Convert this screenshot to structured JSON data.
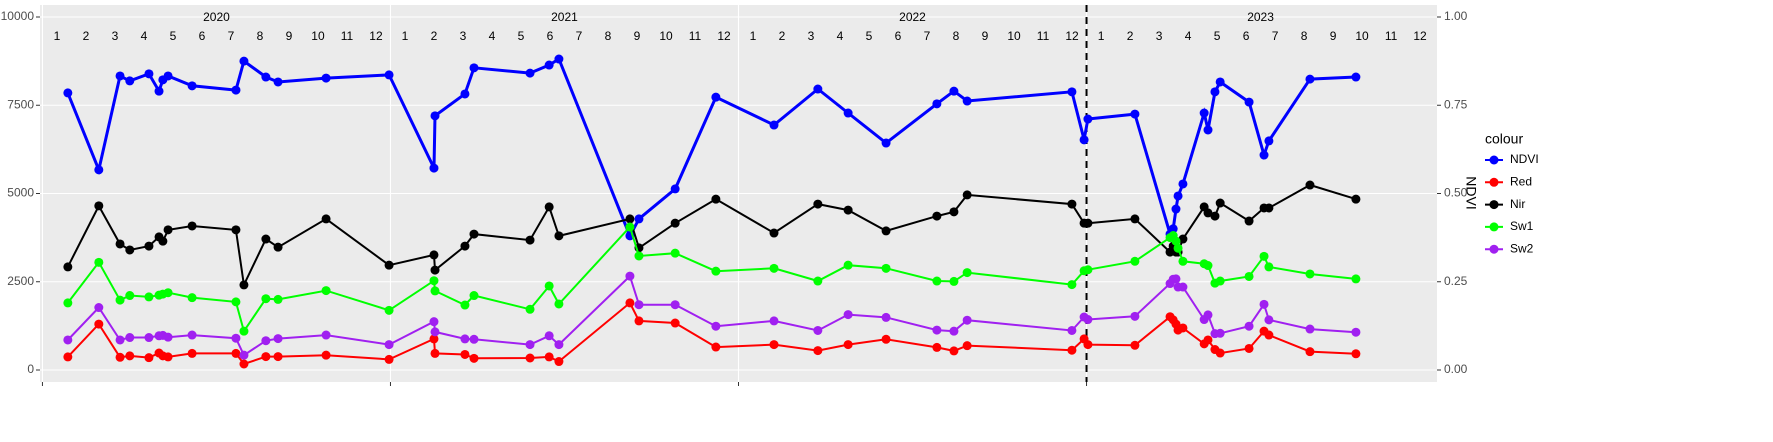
{
  "chart_data": {
    "type": "line",
    "x": [
      2020.073,
      2020.162,
      2020.223,
      2020.251,
      2020.306,
      2020.335,
      2020.346,
      2020.361,
      2020.43,
      2020.556,
      2020.579,
      2020.642,
      2020.677,
      2020.815,
      2020.996,
      2021.125,
      2021.128,
      2021.214,
      2021.24,
      2021.401,
      2021.456,
      2021.484,
      2021.688,
      2021.714,
      2021.818,
      2021.935,
      2022.102,
      2022.228,
      2022.315,
      2022.424,
      2022.57,
      2022.619,
      2022.657,
      2022.958,
      2022.993,
      2023.004,
      2023.139,
      2023.24,
      2023.249,
      2023.257,
      2023.263,
      2023.277,
      2023.338,
      2023.349,
      2023.369,
      2023.384,
      2023.467,
      2023.51,
      2023.524,
      2023.642,
      2023.774
    ],
    "series": [
      {
        "name": "NDVI",
        "color": "#0000ff",
        "axis": "y2",
        "values": [
          0.785,
          0.567,
          0.833,
          0.819,
          0.839,
          0.79,
          0.822,
          0.833,
          0.805,
          0.793,
          0.875,
          0.83,
          0.816,
          0.827,
          0.836,
          0.572,
          0.72,
          0.782,
          0.856,
          0.841,
          0.864,
          0.881,
          0.38,
          0.428,
          0.513,
          0.773,
          0.694,
          0.796,
          0.728,
          0.643,
          0.754,
          0.79,
          0.762,
          0.788,
          0.652,
          0.711,
          0.725,
          0.385,
          0.4,
          0.456,
          0.493,
          0.527,
          0.728,
          0.68,
          0.788,
          0.816,
          0.759,
          0.609,
          0.649,
          0.824,
          0.83
        ]
      },
      {
        "name": "Red",
        "color": "#ff0000",
        "values": [
          370,
          1300,
          360,
          400,
          350,
          480,
          400,
          370,
          470,
          470,
          170,
          380,
          380,
          420,
          300,
          880,
          470,
          440,
          330,
          340,
          370,
          240,
          1900,
          1390,
          1330,
          650,
          720,
          550,
          720,
          870,
          640,
          540,
          690,
          560,
          880,
          720,
          700,
          1510,
          1420,
          1300,
          1130,
          1190,
          740,
          850,
          580,
          480,
          610,
          1100,
          990,
          520,
          460
        ]
      },
      {
        "name": "Nir",
        "color": "#000000",
        "values": [
          2920,
          4650,
          3570,
          3400,
          3510,
          3770,
          3650,
          3970,
          4080,
          3970,
          2410,
          3710,
          3480,
          4280,
          2970,
          3260,
          2830,
          3510,
          3850,
          3680,
          4620,
          3800,
          4280,
          3460,
          4160,
          4840,
          3880,
          4700,
          4530,
          3940,
          4360,
          4480,
          4960,
          4700,
          4160,
          4160,
          4280,
          3340,
          3510,
          3340,
          3340,
          3710,
          4620,
          4450,
          4360,
          4730,
          4220,
          4590,
          4590,
          5240,
          4840
        ]
      },
      {
        "name": "Sw1",
        "color": "#00ff00",
        "values": [
          1900,
          3050,
          1980,
          2110,
          2070,
          2120,
          2150,
          2190,
          2050,
          1930,
          1100,
          2020,
          2000,
          2250,
          1690,
          2530,
          2240,
          1840,
          2110,
          1720,
          2380,
          1870,
          4050,
          3230,
          3310,
          2800,
          2880,
          2520,
          2970,
          2880,
          2520,
          2510,
          2760,
          2420,
          2810,
          2840,
          3080,
          3750,
          3810,
          3650,
          3450,
          3080,
          3010,
          2960,
          2460,
          2520,
          2650,
          3220,
          2920,
          2720,
          2580
        ]
      },
      {
        "name": "Sw2",
        "color": "#a020f0",
        "values": [
          850,
          1770,
          850,
          920,
          920,
          970,
          980,
          930,
          990,
          900,
          420,
          830,
          890,
          990,
          720,
          1370,
          1080,
          880,
          870,
          720,
          970,
          720,
          2660,
          1850,
          1850,
          1240,
          1390,
          1120,
          1570,
          1490,
          1130,
          1100,
          1410,
          1120,
          1500,
          1430,
          1520,
          2450,
          2570,
          2580,
          2350,
          2350,
          1430,
          1560,
          1030,
          1040,
          1240,
          1860,
          1420,
          1160,
          1070
        ]
      }
    ],
    "xlim": [
      2019.993,
      2024.007
    ],
    "years": [
      {
        "value": 2020,
        "label": "2020"
      },
      {
        "value": 2021,
        "label": "2021"
      },
      {
        "value": 2022,
        "label": "2022"
      },
      {
        "value": 2023,
        "label": "2023"
      }
    ],
    "months": [
      "1",
      "2",
      "3",
      "4",
      "5",
      "6",
      "7",
      "8",
      "9",
      "10",
      "11",
      "12"
    ],
    "vline": 2023,
    "ylim": [
      -340,
      10340
    ],
    "yticks": [
      0,
      2500,
      5000,
      7500,
      10000
    ],
    "y2lim": [
      -0.034,
      1.034
    ],
    "y2ticks": [
      {
        "value": 0,
        "label": "0.00"
      },
      {
        "value": 0.25,
        "label": "0.25"
      },
      {
        "value": 0.5,
        "label": "0.50"
      },
      {
        "value": 0.75,
        "label": "0.75"
      },
      {
        "value": 1,
        "label": "1.00"
      }
    ],
    "y2label": "NDVI",
    "legend_title": "colour",
    "grid": true
  }
}
